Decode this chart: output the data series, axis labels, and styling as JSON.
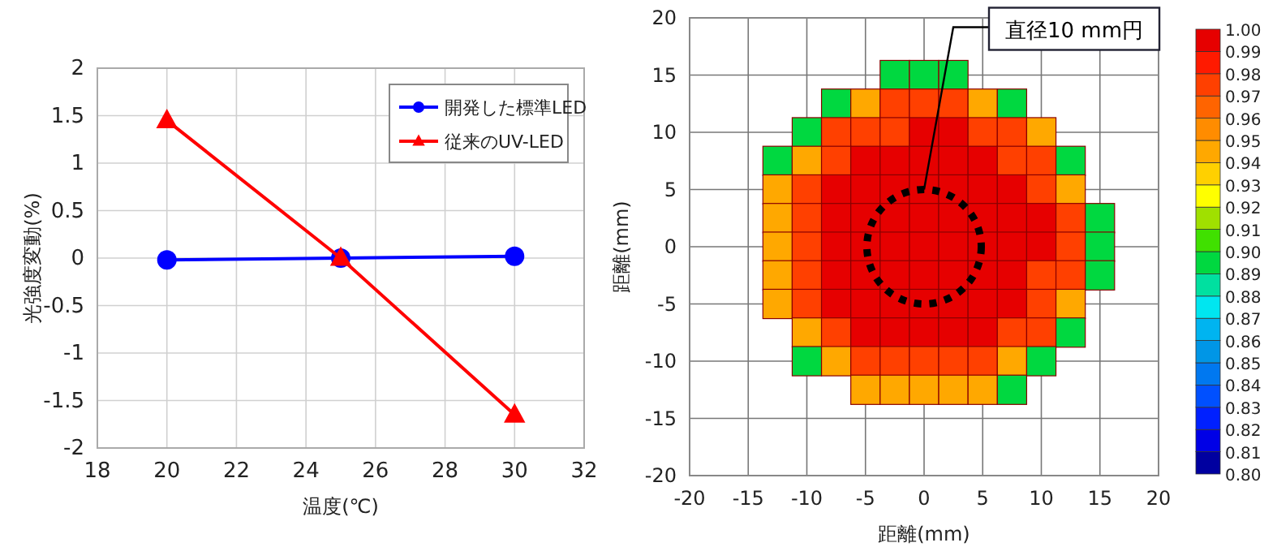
{
  "chart_data": [
    {
      "type": "line",
      "xlabel": "温度(℃)",
      "ylabel": "光強度変動(%)",
      "xlim": [
        18,
        32
      ],
      "xticks": [
        18,
        20,
        22,
        24,
        26,
        28,
        30,
        32
      ],
      "ylim": [
        -2,
        2
      ],
      "yticks": [
        -2,
        -1.5,
        -1,
        -0.5,
        0,
        0.5,
        1,
        1.5,
        2
      ],
      "grid": true,
      "legend": "top right",
      "x": [
        20,
        25,
        30
      ],
      "series": [
        {
          "name": "開発した標準LED",
          "color": "#0000ff",
          "marker": "circle",
          "values": [
            -0.02,
            0,
            0.02
          ]
        },
        {
          "name": "従来のUV-LED",
          "color": "#ff0000",
          "marker": "triangle",
          "values": [
            1.45,
            0,
            -1.65
          ]
        }
      ]
    },
    {
      "type": "scatter",
      "marker": "square",
      "xlabel": "距離(mm)",
      "ylabel": "距離(mm)",
      "xlim": [
        -20,
        20
      ],
      "xticks": [
        -20,
        -15,
        -10,
        -5,
        0,
        5,
        10,
        15,
        20
      ],
      "ylim": [
        -20,
        20
      ],
      "yticks": [
        -20,
        -15,
        -10,
        -5,
        0,
        5,
        10,
        15,
        20
      ],
      "grid": true,
      "clim": [
        0.8,
        1.0
      ],
      "cticks": [
        {
          "value": 0.8,
          "label": "0.80"
        },
        {
          "value": 0.81,
          "label": "0.81"
        },
        {
          "value": 0.82,
          "label": "0.82"
        },
        {
          "value": 0.83,
          "label": "0.83"
        },
        {
          "value": 0.84,
          "label": "0.84"
        },
        {
          "value": 0.85,
          "label": "0.85"
        },
        {
          "value": 0.86,
          "label": "0.86"
        },
        {
          "value": 0.87,
          "label": "0.87"
        },
        {
          "value": 0.88,
          "label": "0.88"
        },
        {
          "value": 0.89,
          "label": "0.89"
        },
        {
          "value": 0.9,
          "label": "0.90"
        },
        {
          "value": 0.91,
          "label": "0.91"
        },
        {
          "value": 0.92,
          "label": "0.92"
        },
        {
          "value": 0.93,
          "label": "0.93"
        },
        {
          "value": 0.94,
          "label": "0.94"
        },
        {
          "value": 0.95,
          "label": "0.95"
        },
        {
          "value": 0.96,
          "label": "0.96"
        },
        {
          "value": 0.97,
          "label": "0.97"
        },
        {
          "value": 0.98,
          "label": "0.98"
        },
        {
          "value": 0.99,
          "label": "0.99"
        },
        {
          "value": 1.0,
          "label": "1.00"
        }
      ],
      "x": [
        -2.5,
        0,
        2.5,
        -7.5,
        -5,
        -2.5,
        0,
        2.5,
        5,
        7.5,
        -10,
        -7.5,
        -5,
        -2.5,
        0,
        2.5,
        5,
        7.5,
        10,
        -12.5,
        -10,
        -7.5,
        -5,
        -2.5,
        0,
        2.5,
        5,
        7.5,
        10,
        12.5,
        -12.5,
        -10,
        -7.5,
        -5,
        -2.5,
        0,
        2.5,
        5,
        7.5,
        10,
        12.5,
        -12.5,
        -10,
        -7.5,
        -5,
        -2.5,
        0,
        2.5,
        5,
        7.5,
        10,
        12.5,
        15,
        -12.5,
        -10,
        -7.5,
        -5,
        -2.5,
        0,
        2.5,
        5,
        7.5,
        10,
        12.5,
        15,
        -12.5,
        -10,
        -7.5,
        -5,
        -2.5,
        0,
        2.5,
        5,
        7.5,
        10,
        12.5,
        15,
        -12.5,
        -10,
        -7.5,
        -5,
        -2.5,
        0,
        2.5,
        5,
        7.5,
        10,
        12.5,
        -10,
        -7.5,
        -5,
        -2.5,
        0,
        2.5,
        5,
        7.5,
        10,
        12.5,
        -10,
        -7.5,
        -5,
        -2.5,
        0,
        2.5,
        5,
        7.5,
        10,
        -5,
        -2.5,
        0,
        2.5,
        5,
        7.5
      ],
      "values": [
        15,
        15,
        15,
        12.5,
        12.5,
        12.5,
        12.5,
        12.5,
        12.5,
        12.5,
        10,
        10,
        10,
        10,
        10,
        10,
        10,
        10,
        10,
        7.5,
        7.5,
        7.5,
        7.5,
        7.5,
        7.5,
        7.5,
        7.5,
        7.5,
        7.5,
        7.5,
        5,
        5,
        5,
        5,
        5,
        5,
        5,
        5,
        5,
        5,
        5,
        2.5,
        2.5,
        2.5,
        2.5,
        2.5,
        2.5,
        2.5,
        2.5,
        2.5,
        2.5,
        2.5,
        2.5,
        0,
        0,
        0,
        0,
        0,
        0,
        0,
        0,
        0,
        0,
        0,
        0,
        -2.5,
        -2.5,
        -2.5,
        -2.5,
        -2.5,
        -2.5,
        -2.5,
        -2.5,
        -2.5,
        -2.5,
        -2.5,
        -2.5,
        -5,
        -5,
        -5,
        -5,
        -5,
        -5,
        -5,
        -5,
        -5,
        -5,
        -5,
        -7.5,
        -7.5,
        -7.5,
        -7.5,
        -7.5,
        -7.5,
        -7.5,
        -7.5,
        -7.5,
        -7.5,
        -10,
        -10,
        -10,
        -10,
        -10,
        -10,
        -10,
        -10,
        -10,
        -12.5,
        -12.5,
        -12.5,
        -12.5,
        -12.5,
        -12.5
      ],
      "cvalues": [
        0.89,
        0.89,
        0.89,
        0.89,
        0.94,
        0.97,
        0.97,
        0.97,
        0.94,
        0.89,
        0.89,
        0.97,
        0.97,
        0.97,
        0.99,
        0.99,
        0.97,
        0.97,
        0.94,
        0.89,
        0.94,
        0.97,
        0.99,
        0.99,
        0.99,
        0.99,
        0.99,
        0.97,
        0.97,
        0.89,
        0.94,
        0.97,
        0.99,
        1.0,
        0.99,
        0.99,
        0.99,
        0.99,
        0.99,
        0.97,
        0.94,
        0.94,
        0.97,
        0.99,
        0.99,
        0.99,
        0.99,
        0.99,
        0.99,
        0.99,
        0.99,
        0.97,
        0.89,
        0.94,
        0.97,
        0.99,
        0.99,
        0.99,
        0.99,
        0.99,
        0.99,
        0.99,
        0.99,
        0.97,
        0.89,
        0.94,
        0.97,
        0.99,
        0.99,
        0.99,
        0.99,
        0.99,
        0.99,
        0.99,
        0.97,
        0.97,
        0.89,
        0.94,
        0.97,
        0.99,
        0.99,
        0.99,
        0.99,
        0.99,
        0.99,
        0.99,
        0.97,
        0.94,
        0.94,
        0.97,
        0.99,
        1.0,
        0.99,
        0.99,
        1.0,
        0.97,
        0.97,
        0.89,
        0.89,
        0.94,
        0.97,
        0.97,
        0.97,
        0.97,
        0.97,
        0.94,
        0.89,
        0.94,
        0.94,
        0.94,
        0.94,
        0.94,
        0.89
      ],
      "annotations": [
        {
          "text": "直径10 mm円",
          "x": 0,
          "y": 5
        }
      ]
    }
  ]
}
